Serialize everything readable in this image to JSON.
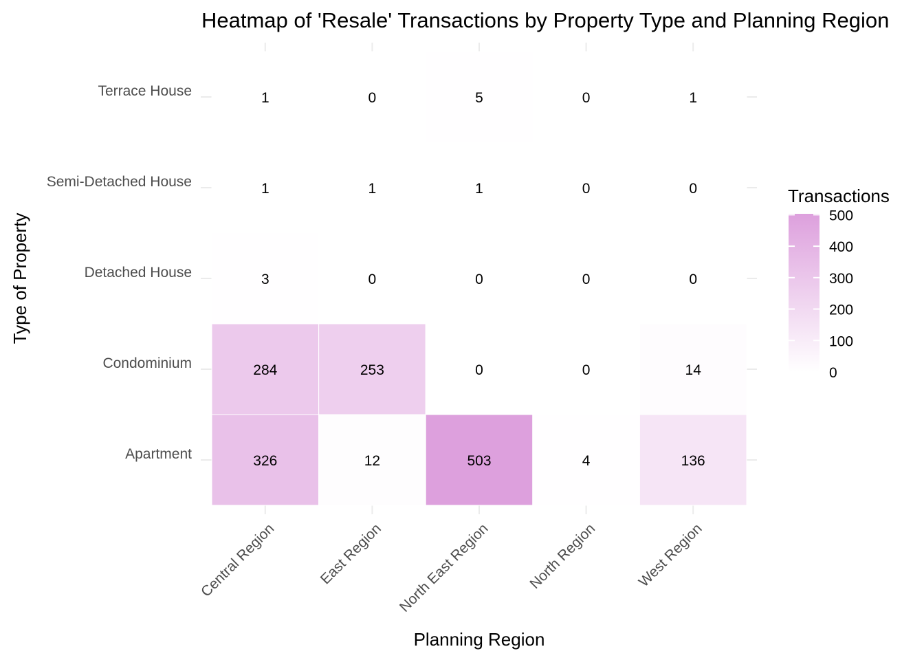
{
  "chart_data": {
    "type": "heatmap",
    "title": "Heatmap of 'Resale' Transactions by Property Type and Planning Region",
    "xlabel": "Planning Region",
    "ylabel": "Type of Property",
    "x_categories": [
      "Central Region",
      "East Region",
      "North East Region",
      "North Region",
      "West Region"
    ],
    "y_categories": [
      "Apartment",
      "Condominium",
      "Detached House",
      "Semi-Detached House",
      "Terrace House"
    ],
    "values": [
      [
        326,
        12,
        503,
        4,
        136
      ],
      [
        284,
        253,
        0,
        0,
        14
      ],
      [
        3,
        0,
        0,
        0,
        0
      ],
      [
        1,
        1,
        1,
        0,
        0
      ],
      [
        1,
        0,
        5,
        0,
        1
      ]
    ],
    "legend": {
      "title": "Transactions",
      "ticks": [
        0,
        100,
        200,
        300,
        400,
        500
      ],
      "range": [
        0,
        503
      ],
      "position": "right"
    },
    "colors": {
      "low": "#ffffff",
      "high": "#dda0dd"
    },
    "grid": true
  }
}
